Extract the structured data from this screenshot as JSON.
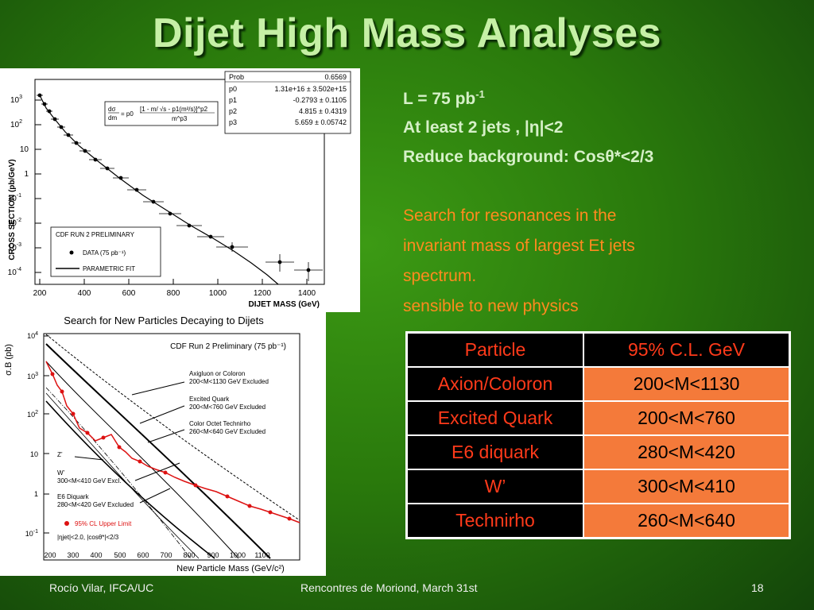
{
  "slide": {
    "title": "Dijet High Mass Analyses",
    "lines": {
      "luminosity_text": "L = 75 pb",
      "luminosity_exp": "-1",
      "jets_prefix": "At least 2 jets , |",
      "eta_symbol": "η",
      "jets_suffix": "|<2",
      "bg_prefix": "Reduce background: Cos",
      "theta_symbol": "θ",
      "bg_suffix": "*<2/3",
      "search_1": "Search for resonances in the",
      "search_2": "invariant mass of largest Et jets",
      "search_3": "spectrum.",
      "sensible": "sensible to new physics"
    },
    "table": {
      "header": [
        "Particle",
        "95% C.L.  GeV"
      ],
      "rows": [
        [
          "Axion/Coloron",
          "200<M<1130"
        ],
        [
          "Excited Quark",
          "200<M<760"
        ],
        [
          "E6 diquark",
          "280<M<420"
        ],
        [
          "W’",
          "300<M<410"
        ],
        [
          "Technirho",
          "260<M<640"
        ]
      ]
    },
    "footer": {
      "left": "Rocío Vilar, IFCA/UC",
      "center": "Rencontres de Moriond, March 31st",
      "right": "18"
    }
  },
  "plot1": {
    "ylabel": "CROSS  SECTION (pb/GeV)",
    "xlabel": "DIJET MASS (GeV)",
    "xticks": [
      "200",
      "400",
      "600",
      "800",
      "1000",
      "1200",
      "1400"
    ],
    "yticks": [
      {
        "m": "10",
        "e": "3"
      },
      {
        "m": "10",
        "e": "2"
      },
      {
        "m": "10",
        "e": ""
      },
      {
        "m": "1",
        "e": ""
      },
      {
        "m": "10",
        "e": "-1"
      },
      {
        "m": "10",
        "e": "-2"
      },
      {
        "m": "10",
        "e": "-3"
      },
      {
        "m": "10",
        "e": "-4"
      }
    ],
    "fit_formula": {
      "lhs_num": "dσ",
      "lhs_den": "dm",
      "mid": "= p0",
      "num": "[1 - m/ √s - p1(m²/s)]^p2",
      "den": "m^p3"
    },
    "stats": [
      [
        "Prob",
        "0.6569"
      ],
      [
        "p0",
        "1.31e+16 ± 3.502e+15"
      ],
      [
        "p1",
        "-0.2793 ± 0.1105"
      ],
      [
        "p2",
        "4.815 ± 0.4319"
      ],
      [
        "p3",
        "5.659 ± 0.05742"
      ]
    ],
    "legend": {
      "title": "CDF RUN 2 PRELIMINARY",
      "data": "DATA (75 pb⁻¹)",
      "fit": "PARAMETRIC FIT"
    }
  },
  "plot2": {
    "title": "Search for New Particles Decaying to Dijets",
    "inner_title": "CDF Run 2 Preliminary (75 pb⁻¹)",
    "ylabel": "σ.B (pb)",
    "xlabel": "New Particle Mass (GeV/c²)",
    "xticks": [
      "200",
      "300",
      "400",
      "500",
      "600",
      "700",
      "800",
      "900",
      "1000",
      "1100"
    ],
    "yticks": [
      {
        "m": "10",
        "e": "4"
      },
      {
        "m": "10",
        "e": "3"
      },
      {
        "m": "10",
        "e": "2"
      },
      {
        "m": "10",
        "e": ""
      },
      {
        "m": "1",
        "e": ""
      },
      {
        "m": "10",
        "e": "-1"
      }
    ],
    "annotations": {
      "axigluon_1": "Axigluon or Coloron",
      "axigluon_2": "200<M<1130 GeV Excluded",
      "excited_1": "Excited Quark",
      "excited_2": "200<M<760 GeV Excluded",
      "octet_1": "Color Octet Technirho",
      "octet_2": "260<M<640 GeV Excluded",
      "zprime": "Z’",
      "wprime_1": "W’",
      "wprime_2": "300<M<410 GeV Excl.",
      "diquark_1": "E6 Diquark",
      "diquark_2": "280<M<420 GeV Excluded",
      "limit_label": "95% CL Upper Limit",
      "cuts": "|ηjet|<2.0,  |cosθ*|<2/3"
    }
  },
  "colors": {
    "title_text": "#c6f0a6",
    "bold_text": "#d6f0c8",
    "orange_text": "#ff8a1e",
    "particle_text": "#ff3a1a",
    "value_cell": "#f47a3a",
    "limit_curve": "#dd1111"
  }
}
